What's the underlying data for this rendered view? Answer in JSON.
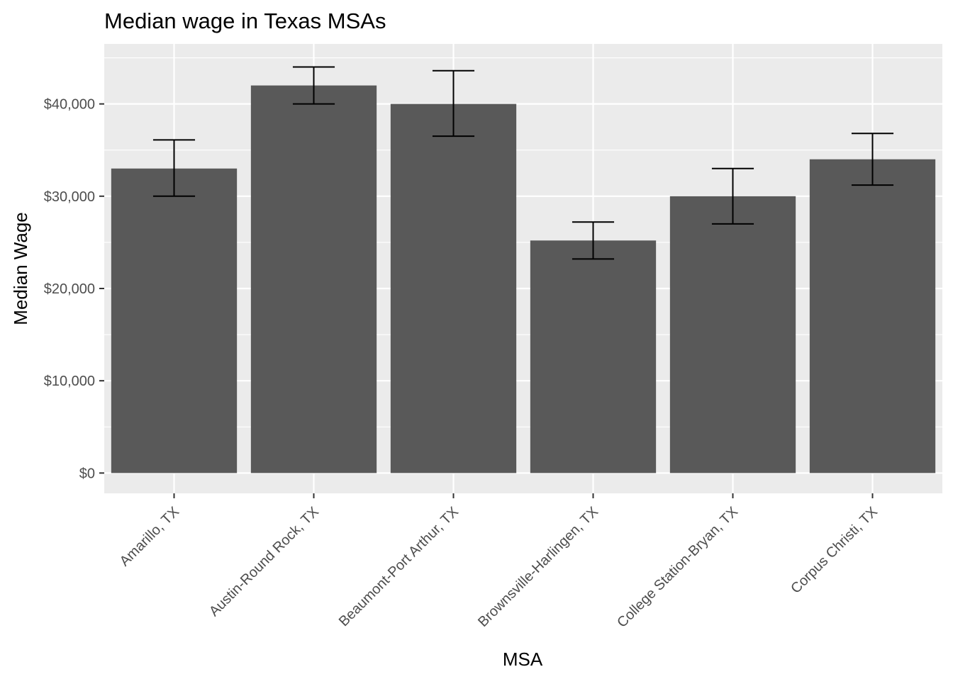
{
  "chart_data": {
    "type": "bar",
    "title": "Median wage in Texas MSAs",
    "xlabel": "MSA",
    "ylabel": "Median Wage",
    "categories": [
      "Amarillo, TX",
      "Austin-Round Rock, TX",
      "Beaumont-Port Arthur, TX",
      "Brownsville-Harlingen, TX",
      "College Station-Bryan, TX",
      "Corpus Christi, TX"
    ],
    "values": [
      33000,
      42000,
      40000,
      25200,
      30000,
      34000
    ],
    "error_low": [
      30000,
      40000,
      36500,
      23200,
      27000,
      31200
    ],
    "error_high": [
      36100,
      44000,
      43600,
      27200,
      33000,
      36800
    ],
    "ylim": [
      -2200,
      46500
    ],
    "yticks": [
      0,
      10000,
      20000,
      30000,
      40000
    ],
    "ytick_labels": [
      "$0",
      "$10,000",
      "$20,000",
      "$30,000",
      "$40,000"
    ],
    "grid": true,
    "colors": {
      "bar": "#595959",
      "panel": "#ebebeb",
      "grid": "#ffffff",
      "errorbar": "#000000",
      "tick": "#333333"
    }
  }
}
